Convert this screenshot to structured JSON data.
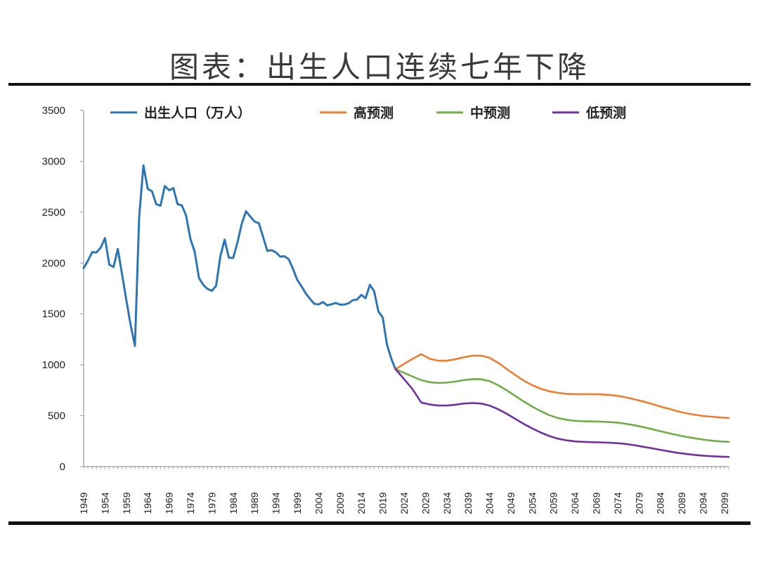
{
  "title": "图表：出生人口连续七年下降",
  "chart_data": {
    "type": "line",
    "ylim": [
      0,
      3500
    ],
    "yticks": [
      0,
      500,
      1000,
      1500,
      2000,
      2500,
      3000,
      3500
    ],
    "xlim": [
      1949,
      2100
    ],
    "xticks": [
      1949,
      1954,
      1959,
      1964,
      1969,
      1974,
      1979,
      1984,
      1989,
      1994,
      1999,
      2004,
      2009,
      2014,
      2019,
      2024,
      2029,
      2034,
      2039,
      2044,
      2049,
      2054,
      2059,
      2064,
      2069,
      2074,
      2079,
      2084,
      2089,
      2094,
      2099
    ],
    "grid": false,
    "legend": "top",
    "series": [
      {
        "name": "出生人口（万人）",
        "color": "#2e75b6",
        "x": [
          1949,
          1950,
          1951,
          1952,
          1953,
          1954,
          1955,
          1956,
          1957,
          1958,
          1959,
          1960,
          1961,
          1962,
          1963,
          1964,
          1965,
          1966,
          1967,
          1968,
          1969,
          1970,
          1971,
          1972,
          1973,
          1974,
          1975,
          1976,
          1977,
          1978,
          1979,
          1980,
          1981,
          1982,
          1983,
          1984,
          1985,
          1986,
          1987,
          1988,
          1989,
          1990,
          1991,
          1992,
          1993,
          1994,
          1995,
          1996,
          1997,
          1998,
          1999,
          2000,
          2001,
          2002,
          2003,
          2004,
          2005,
          2006,
          2007,
          2008,
          2009,
          2010,
          2011,
          2012,
          2013,
          2014,
          2015,
          2016,
          2017,
          2018,
          2019,
          2020,
          2021,
          2022
        ],
        "y": [
          1950,
          2023,
          2107,
          2104,
          2151,
          2245,
          1984,
          1961,
          2138,
          1889,
          1635,
          1389,
          1187,
          2451,
          2959,
          2729,
          2704,
          2577,
          2563,
          2757,
          2715,
          2736,
          2578,
          2566,
          2463,
          2235,
          2109,
          1853,
          1786,
          1745,
          1727,
          1776,
          2064,
          2230,
          2052,
          2050,
          2202,
          2384,
          2508,
          2457,
          2407,
          2391,
          2258,
          2119,
          2126,
          2104,
          2063,
          2067,
          2038,
          1942,
          1834,
          1771,
          1702,
          1647,
          1599,
          1593,
          1617,
          1584,
          1594,
          1608,
          1591,
          1592,
          1604,
          1635,
          1640,
          1687,
          1655,
          1786,
          1723,
          1523,
          1465,
          1200,
          1062,
          956
        ]
      },
      {
        "name": "高预测",
        "color": "#ed7d31",
        "x": [
          2022,
          2024,
          2026,
          2028,
          2030,
          2032,
          2034,
          2036,
          2038,
          2040,
          2042,
          2044,
          2046,
          2048,
          2050,
          2052,
          2054,
          2056,
          2058,
          2060,
          2062,
          2064,
          2066,
          2068,
          2070,
          2072,
          2074,
          2076,
          2078,
          2080,
          2082,
          2084,
          2086,
          2088,
          2090,
          2092,
          2094,
          2096,
          2098,
          2100
        ],
        "y": [
          956,
          1010,
          1060,
          1105,
          1060,
          1040,
          1040,
          1055,
          1075,
          1090,
          1090,
          1070,
          1020,
          960,
          900,
          845,
          800,
          765,
          740,
          725,
          715,
          712,
          712,
          712,
          710,
          705,
          695,
          680,
          660,
          640,
          615,
          590,
          568,
          545,
          525,
          510,
          498,
          490,
          483,
          478
        ]
      },
      {
        "name": "中预测",
        "color": "#70ad47",
        "x": [
          2022,
          2024,
          2026,
          2028,
          2030,
          2032,
          2034,
          2036,
          2038,
          2040,
          2042,
          2044,
          2046,
          2048,
          2050,
          2052,
          2054,
          2056,
          2058,
          2060,
          2062,
          2064,
          2066,
          2068,
          2070,
          2072,
          2074,
          2076,
          2078,
          2080,
          2082,
          2084,
          2086,
          2088,
          2090,
          2092,
          2094,
          2096,
          2098,
          2100
        ],
        "y": [
          956,
          920,
          885,
          850,
          830,
          822,
          825,
          835,
          850,
          860,
          858,
          840,
          800,
          750,
          695,
          640,
          590,
          545,
          505,
          478,
          460,
          450,
          446,
          444,
          442,
          438,
          432,
          420,
          405,
          388,
          368,
          348,
          328,
          310,
          293,
          278,
          265,
          255,
          248,
          243
        ]
      },
      {
        "name": "低预测",
        "color": "#7030a0",
        "x": [
          2022,
          2024,
          2026,
          2028,
          2030,
          2032,
          2034,
          2036,
          2038,
          2040,
          2042,
          2044,
          2046,
          2048,
          2050,
          2052,
          2054,
          2056,
          2058,
          2060,
          2062,
          2064,
          2066,
          2068,
          2070,
          2072,
          2074,
          2076,
          2078,
          2080,
          2082,
          2084,
          2086,
          2088,
          2090,
          2092,
          2094,
          2096,
          2098,
          2100
        ],
        "y": [
          956,
          860,
          760,
          630,
          610,
          600,
          600,
          608,
          620,
          625,
          620,
          600,
          565,
          520,
          470,
          420,
          375,
          335,
          300,
          275,
          258,
          248,
          243,
          240,
          238,
          235,
          230,
          222,
          210,
          195,
          180,
          165,
          150,
          136,
          125,
          115,
          108,
          102,
          98,
          95
        ]
      }
    ]
  }
}
